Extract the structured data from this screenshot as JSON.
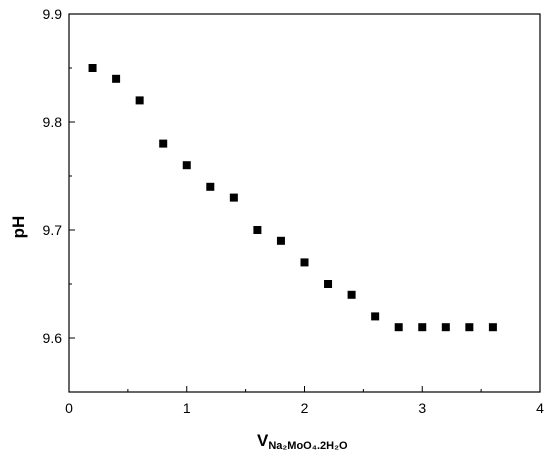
{
  "chart_data": {
    "type": "scatter",
    "title": "",
    "xlabel": "V",
    "xlabel_subscript": "Na₂MoO₄.2H₂O",
    "ylabel": "pH",
    "xlim": [
      0,
      4
    ],
    "ylim": [
      9.55,
      9.9
    ],
    "grid": false,
    "marker": "square",
    "marker_color": "#000000",
    "x_ticks": [
      "0",
      "1",
      "2",
      "3",
      "4"
    ],
    "y_ticks": [
      "9.6",
      "9.7",
      "9.8",
      "9.9"
    ],
    "points": [
      {
        "x": 0.2,
        "y": 9.85
      },
      {
        "x": 0.4,
        "y": 9.84
      },
      {
        "x": 0.6,
        "y": 9.82
      },
      {
        "x": 0.8,
        "y": 9.78
      },
      {
        "x": 1.0,
        "y": 9.76
      },
      {
        "x": 1.2,
        "y": 9.74
      },
      {
        "x": 1.4,
        "y": 9.73
      },
      {
        "x": 1.6,
        "y": 9.7
      },
      {
        "x": 1.8,
        "y": 9.69
      },
      {
        "x": 2.0,
        "y": 9.67
      },
      {
        "x": 2.2,
        "y": 9.65
      },
      {
        "x": 2.4,
        "y": 9.64
      },
      {
        "x": 2.6,
        "y": 9.62
      },
      {
        "x": 2.8,
        "y": 9.61
      },
      {
        "x": 3.0,
        "y": 9.61
      },
      {
        "x": 3.2,
        "y": 9.61
      },
      {
        "x": 3.4,
        "y": 9.61
      },
      {
        "x": 3.6,
        "y": 9.61
      }
    ]
  }
}
